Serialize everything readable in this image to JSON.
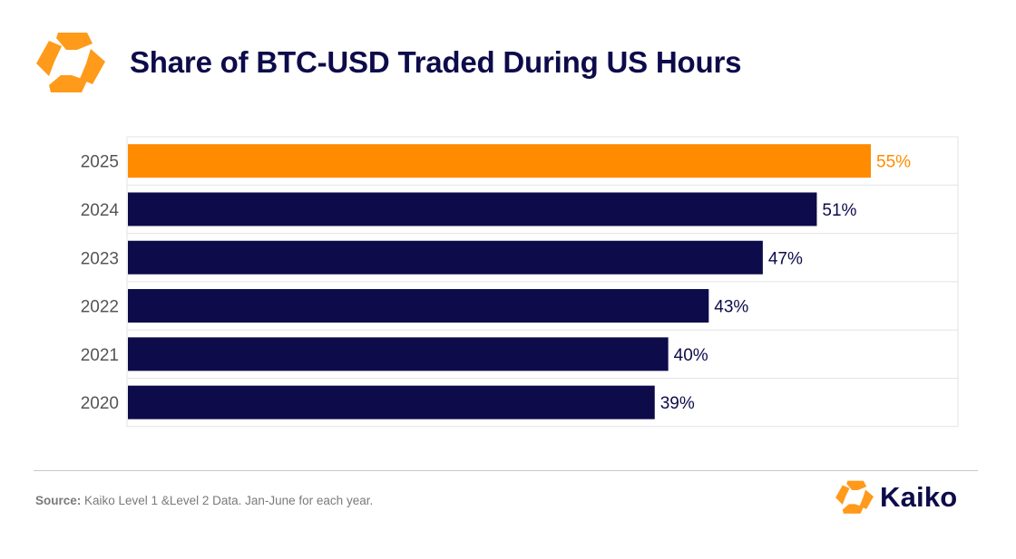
{
  "title": "Share of BTC-USD Traded During US Hours",
  "colors": {
    "highlight": "#ff8c00",
    "bar": "#0d0b4a",
    "label_default": "#0d0b4a",
    "label_highlight": "#ff8c00",
    "grid": "#e3e3e3",
    "category_text": "#555555",
    "logo": "#ff9a1a"
  },
  "logo_icon": "kaiko-hexagon-icon",
  "chart_data": {
    "type": "bar",
    "orientation": "horizontal",
    "categories": [
      "2025",
      "2024",
      "2023",
      "2022",
      "2021",
      "2020"
    ],
    "values": [
      55,
      51,
      47,
      43,
      40,
      39
    ],
    "data_labels": [
      "55%",
      "51%",
      "47%",
      "43%",
      "40%",
      "39%"
    ],
    "highlight_index": 0,
    "title": "Share of BTC-USD Traded During US Hours",
    "xlabel": "",
    "ylabel": "",
    "xlim": [
      0,
      60
    ],
    "grid": true,
    "unit": "%"
  },
  "footer": {
    "source_label": "Source:",
    "source_text": " Kaiko Level 1 &Level 2 Data. Jan-June for each year.",
    "brand_name": "Kaiko"
  }
}
